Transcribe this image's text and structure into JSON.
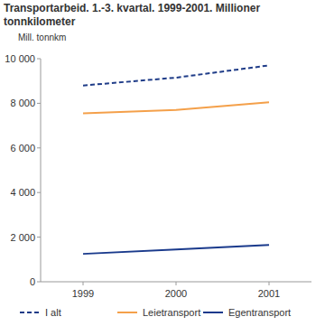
{
  "chart_data": {
    "type": "line",
    "title": "Transportarbeid. 1.-3. kvartal. 1999-2001. Millioner tonnkilometer",
    "y_label": "Mill. tonnkm",
    "categories": [
      "1999",
      "2000",
      "2001"
    ],
    "series": [
      {
        "name": "I alt",
        "color": "#1f3c88",
        "line_style": "dashed",
        "values": [
          8800,
          9150,
          9700
        ]
      },
      {
        "name": "Leietransport",
        "color": "#f4a04a",
        "line_style": "solid",
        "values": [
          7550,
          7700,
          8050
        ]
      },
      {
        "name": "Egentransport",
        "color": "#1a3a8c",
        "line_style": "solid",
        "values": [
          1250,
          1450,
          1650
        ]
      }
    ],
    "ylim": [
      0,
      10000
    ],
    "yticks": [
      0,
      {
        "value": 2000,
        "label": "2 000"
      },
      {
        "value": 4000,
        "label": "4 000"
      },
      {
        "value": 6000,
        "label": "6 000"
      },
      {
        "value": 8000,
        "label": "8 000"
      },
      {
        "value": 10000,
        "label": "10 000"
      }
    ],
    "grid": false,
    "legend": "bottom"
  }
}
